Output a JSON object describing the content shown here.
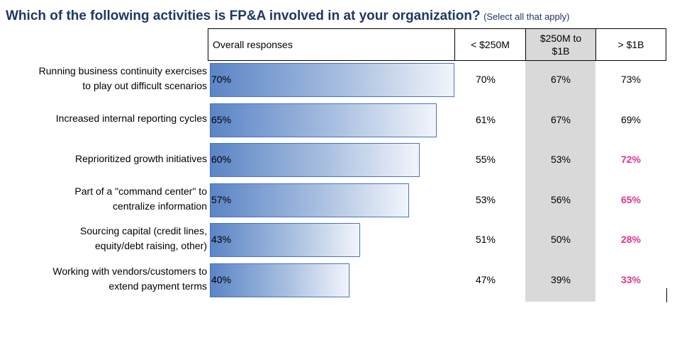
{
  "title": {
    "main": "Which of the following activities is FP&A involved in at your organization?",
    "sub": "(Select all that apply)"
  },
  "headers": {
    "overall": "Overall responses",
    "col1": "< $250M",
    "col2_line1": "$250M to",
    "col2_line2": "$1B",
    "col3": "> $1B"
  },
  "colors": {
    "highlight": "#e0338c",
    "bar": "#5b85c6",
    "shade": "#d9d9d9",
    "title": "#1f3864"
  },
  "chart_data": {
    "type": "bar",
    "orientation": "horizontal",
    "categories": [
      [
        "Running business continuity exercises",
        "to play out difficult scenarios"
      ],
      [
        "Increased internal reporting cycles"
      ],
      [
        "Reprioritized growth initiatives"
      ],
      [
        "Part of a \"command center\" to",
        "centralize information"
      ],
      [
        "Sourcing capital (credit lines,",
        "equity/debt raising, other)"
      ],
      [
        "Working with vendors/customers to",
        "extend payment terms"
      ]
    ],
    "values": [
      70,
      65,
      60,
      57,
      43,
      40
    ],
    "value_labels": [
      "70%",
      "65%",
      "60%",
      "57%",
      "43%",
      "40%"
    ],
    "table": {
      "columns": [
        "< $250M",
        "$250M to $1B",
        "> $1B"
      ],
      "rows": [
        [
          "70%",
          "67%",
          "73%"
        ],
        [
          "61%",
          "67%",
          "69%"
        ],
        [
          "55%",
          "53%",
          "72%"
        ],
        [
          "53%",
          "56%",
          "65%"
        ],
        [
          "51%",
          "50%",
          "28%"
        ],
        [
          "47%",
          "39%",
          "33%"
        ]
      ],
      "highlighted": [
        [
          false,
          false,
          false
        ],
        [
          false,
          false,
          false
        ],
        [
          false,
          false,
          true
        ],
        [
          false,
          false,
          true
        ],
        [
          false,
          false,
          true
        ],
        [
          false,
          false,
          true
        ]
      ]
    }
  }
}
